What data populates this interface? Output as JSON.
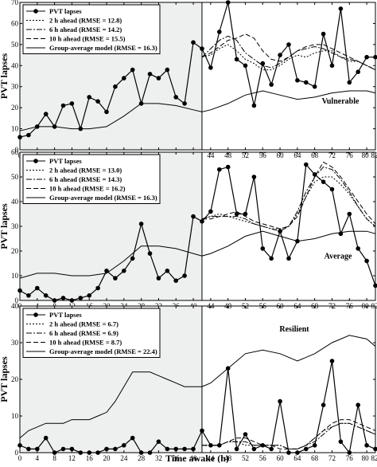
{
  "figure": {
    "xlabel": "Time awake (h)"
  },
  "chart_data": [
    {
      "type": "line",
      "panel_label": "Vulnerable",
      "ylabel": "PVT lapses",
      "xlim": [
        0,
        82
      ],
      "ylim": [
        0,
        70
      ],
      "yticks": [
        0,
        10,
        20,
        30,
        40,
        50,
        60,
        70
      ],
      "xticks": [
        0,
        4,
        8,
        12,
        16,
        20,
        24,
        28,
        32,
        36,
        40,
        44,
        48,
        52,
        56,
        60,
        64,
        68,
        72,
        76,
        80,
        82
      ],
      "shade_x": [
        0,
        42
      ],
      "vline_x": 42,
      "legend_position": "top-left",
      "series": [
        {
          "name": "PVT lapses",
          "style": "marker",
          "x": [
            0,
            2,
            4,
            6,
            8,
            10,
            12,
            14,
            16,
            18,
            20,
            22,
            24,
            26,
            28,
            30,
            32,
            34,
            36,
            38,
            40,
            42,
            44,
            46,
            48,
            50,
            52,
            54,
            56,
            58,
            60,
            62,
            64,
            66,
            68,
            70,
            72,
            74,
            76,
            78,
            80,
            82
          ],
          "y": [
            6,
            7,
            11,
            17,
            11,
            21,
            22,
            10,
            25,
            23,
            18,
            30,
            34,
            38,
            22,
            36,
            34,
            38,
            25,
            22,
            51,
            48,
            39,
            56,
            70,
            43,
            40,
            21,
            41,
            31,
            45,
            50,
            33,
            32,
            30,
            55,
            40,
            67,
            32,
            37,
            44,
            44
          ]
        },
        {
          "name": "2 h ahead (RMSE = 12.8)",
          "style": "dotted",
          "x": [
            42,
            44,
            46,
            48,
            50,
            52,
            54,
            56,
            58,
            60,
            62,
            64,
            66,
            68,
            70,
            72,
            74,
            76,
            78,
            80,
            82
          ],
          "y": [
            44,
            45,
            48,
            50,
            47,
            43,
            41,
            38,
            38,
            40,
            43,
            45,
            44,
            46,
            47,
            47,
            44,
            42,
            42,
            40,
            38
          ]
        },
        {
          "name": "6 h ahead (RMSE = 14.2)",
          "style": "dashdot",
          "x": [
            42,
            44,
            46,
            48,
            50,
            52,
            54,
            56,
            58,
            60,
            62,
            64,
            66,
            68,
            70,
            72,
            74,
            76,
            78,
            80,
            82
          ],
          "y": [
            44,
            48,
            52,
            54,
            52,
            46,
            43,
            40,
            39,
            41,
            44,
            47,
            48,
            49,
            48,
            46,
            44,
            43,
            42,
            40,
            38
          ]
        },
        {
          "name": "10 h ahead (RMSE = 15.5)",
          "style": "dashed",
          "x": [
            42,
            44,
            46,
            48,
            50,
            52,
            54,
            56,
            58,
            60,
            62,
            64,
            66,
            68,
            70,
            72,
            74,
            76,
            78,
            80,
            82
          ],
          "y": [
            44,
            46,
            49,
            52,
            53,
            55,
            53,
            47,
            43,
            42,
            44,
            47,
            49,
            50,
            50,
            48,
            46,
            44,
            42,
            40,
            38
          ]
        },
        {
          "name": "Group-average model (RMSE = 16.3)",
          "style": "solid",
          "x": [
            0,
            4,
            8,
            12,
            16,
            20,
            24,
            28,
            32,
            36,
            40,
            42,
            44,
            48,
            52,
            56,
            60,
            64,
            68,
            72,
            76,
            80,
            82
          ],
          "y": [
            9,
            11,
            11,
            10,
            10,
            11,
            16,
            22,
            22,
            21,
            19,
            18,
            19,
            22,
            26,
            28,
            26,
            24,
            25,
            27,
            28,
            28,
            27
          ]
        }
      ]
    },
    {
      "type": "line",
      "panel_label": "Average",
      "ylabel": "PVT lapses",
      "xlim": [
        0,
        82
      ],
      "ylim": [
        0,
        60
      ],
      "yticks": [
        0,
        10,
        20,
        30,
        40,
        50,
        60
      ],
      "xticks": [
        0,
        4,
        8,
        12,
        16,
        20,
        24,
        28,
        32,
        36,
        40,
        44,
        48,
        52,
        56,
        60,
        64,
        68,
        72,
        76,
        80,
        82
      ],
      "shade_x": [
        0,
        42
      ],
      "vline_x": 42,
      "legend_position": "top-left",
      "series": [
        {
          "name": "PVT lapses",
          "style": "marker",
          "x": [
            0,
            2,
            4,
            6,
            8,
            10,
            12,
            14,
            16,
            18,
            20,
            22,
            24,
            26,
            28,
            30,
            32,
            34,
            36,
            38,
            40,
            42,
            44,
            46,
            48,
            50,
            52,
            54,
            56,
            58,
            60,
            62,
            64,
            66,
            68,
            70,
            72,
            74,
            76,
            78,
            80,
            82
          ],
          "y": [
            4,
            2,
            5,
            2,
            0,
            1,
            0,
            1,
            2,
            5,
            12,
            9,
            12,
            17,
            31,
            19,
            9,
            12,
            8,
            10,
            34,
            32,
            36,
            53,
            54,
            35,
            35,
            50,
            21,
            17,
            28,
            17,
            24,
            55,
            51,
            48,
            45,
            27,
            35,
            21,
            16,
            6
          ]
        },
        {
          "name": "2 h ahead (RMSE = 13.0)",
          "style": "dotted",
          "x": [
            42,
            44,
            46,
            48,
            50,
            52,
            54,
            56,
            58,
            60,
            62,
            64,
            66,
            68,
            70,
            72,
            74,
            76,
            78,
            80,
            82
          ],
          "y": [
            33,
            34,
            35,
            34,
            33,
            32,
            31,
            30,
            29,
            29,
            30,
            35,
            42,
            48,
            50,
            50,
            47,
            43,
            38,
            33,
            30
          ]
        },
        {
          "name": "6 h ahead (RMSE = 14.3)",
          "style": "dashdot",
          "x": [
            42,
            44,
            46,
            48,
            50,
            52,
            54,
            56,
            58,
            60,
            62,
            64,
            66,
            68,
            70,
            72,
            74,
            76,
            78,
            80,
            82
          ],
          "y": [
            33,
            34,
            34,
            34,
            34,
            33,
            31,
            30,
            29,
            28,
            30,
            36,
            44,
            50,
            54,
            53,
            49,
            44,
            38,
            33,
            30
          ]
        },
        {
          "name": "10 h ahead (RMSE = 16.2)",
          "style": "dashed",
          "x": [
            42,
            44,
            46,
            48,
            50,
            52,
            54,
            56,
            58,
            60,
            62,
            64,
            66,
            68,
            70,
            72,
            74,
            76,
            78,
            80,
            82
          ],
          "y": [
            33,
            33,
            34,
            35,
            36,
            34,
            32,
            31,
            30,
            29,
            30,
            34,
            42,
            50,
            56,
            54,
            50,
            45,
            40,
            35,
            31
          ]
        },
        {
          "name": "Group-average model (RMSE = 16.3)",
          "style": "solid",
          "x": [
            0,
            4,
            8,
            12,
            16,
            20,
            24,
            28,
            32,
            36,
            40,
            42,
            44,
            48,
            52,
            56,
            60,
            64,
            68,
            72,
            76,
            80,
            82
          ],
          "y": [
            9,
            11,
            11,
            10,
            10,
            11,
            16,
            22,
            22,
            21,
            19,
            18,
            19,
            22,
            26,
            28,
            26,
            24,
            25,
            27,
            28,
            28,
            27
          ]
        }
      ]
    },
    {
      "type": "line",
      "panel_label": "Resilient",
      "ylabel": "PVT lapses",
      "xlim": [
        0,
        82
      ],
      "ylim": [
        0,
        40
      ],
      "yticks": [
        0,
        10,
        20,
        30,
        40
      ],
      "xticks": [
        0,
        4,
        8,
        12,
        16,
        20,
        24,
        28,
        32,
        36,
        40,
        44,
        48,
        52,
        56,
        60,
        64,
        68,
        72,
        76,
        80,
        82
      ],
      "shade_x": [
        0,
        42
      ],
      "vline_x": 42,
      "legend_position": "top-left",
      "series": [
        {
          "name": "PVT lapses",
          "style": "marker",
          "x": [
            0,
            2,
            4,
            6,
            8,
            10,
            12,
            14,
            16,
            18,
            20,
            22,
            24,
            26,
            28,
            30,
            32,
            34,
            36,
            38,
            40,
            42,
            44,
            46,
            48,
            50,
            52,
            54,
            56,
            58,
            60,
            62,
            64,
            66,
            68,
            70,
            72,
            74,
            76,
            78,
            80,
            82
          ],
          "y": [
            2,
            1,
            1,
            4,
            0,
            1,
            1,
            0,
            0,
            0,
            1,
            1,
            2,
            4,
            0,
            0,
            3,
            1,
            1,
            1,
            1,
            6,
            2,
            2,
            23,
            1,
            5,
            1,
            2,
            1,
            14,
            0,
            0,
            1,
            2,
            13,
            25,
            3,
            0,
            13,
            2,
            1
          ]
        },
        {
          "name": "2 h ahead (RMSE = 6.7)",
          "style": "dotted",
          "x": [
            42,
            44,
            46,
            48,
            50,
            52,
            54,
            56,
            58,
            60,
            62,
            64,
            66,
            68,
            70,
            72,
            74,
            76,
            78,
            80,
            82
          ],
          "y": [
            2,
            2,
            2,
            3,
            3,
            2,
            2,
            2,
            2,
            2,
            1,
            1,
            2,
            4,
            6,
            7,
            8,
            8,
            7,
            6,
            5
          ]
        },
        {
          "name": "6 h ahead (RMSE = 6.9)",
          "style": "dashdot",
          "x": [
            42,
            44,
            46,
            48,
            50,
            52,
            54,
            56,
            58,
            60,
            62,
            64,
            66,
            68,
            70,
            72,
            74,
            76,
            78,
            80,
            82
          ],
          "y": [
            2,
            2,
            2,
            3,
            3,
            3,
            2,
            2,
            2,
            2,
            1,
            1,
            2,
            3,
            5,
            7,
            8,
            8,
            7,
            6,
            5
          ]
        },
        {
          "name": "10 h ahead (RMSE = 8.7)",
          "style": "dashed",
          "x": [
            42,
            44,
            46,
            48,
            50,
            52,
            54,
            56,
            58,
            60,
            62,
            64,
            66,
            68,
            70,
            72,
            74,
            76,
            78,
            80,
            82
          ],
          "y": [
            2,
            2,
            2,
            3,
            4,
            4,
            3,
            2,
            2,
            1,
            1,
            1,
            2,
            4,
            6,
            8,
            9,
            9,
            8,
            7,
            6
          ]
        },
        {
          "name": "Group-average model (RMSE = 22.4)",
          "style": "solid",
          "x": [
            0,
            2,
            4,
            6,
            8,
            10,
            12,
            14,
            16,
            18,
            20,
            22,
            24,
            26,
            28,
            30,
            32,
            34,
            36,
            38,
            40,
            42,
            44,
            46,
            48,
            52,
            56,
            60,
            64,
            68,
            72,
            76,
            80,
            82
          ],
          "y": [
            4,
            6,
            7,
            8,
            8,
            8,
            9,
            9,
            9,
            10,
            11,
            14,
            18,
            22,
            22,
            22,
            21,
            20,
            19,
            18,
            18,
            18,
            19,
            21,
            23,
            27,
            28,
            27,
            25,
            27,
            30,
            32,
            31,
            29
          ]
        }
      ]
    }
  ]
}
